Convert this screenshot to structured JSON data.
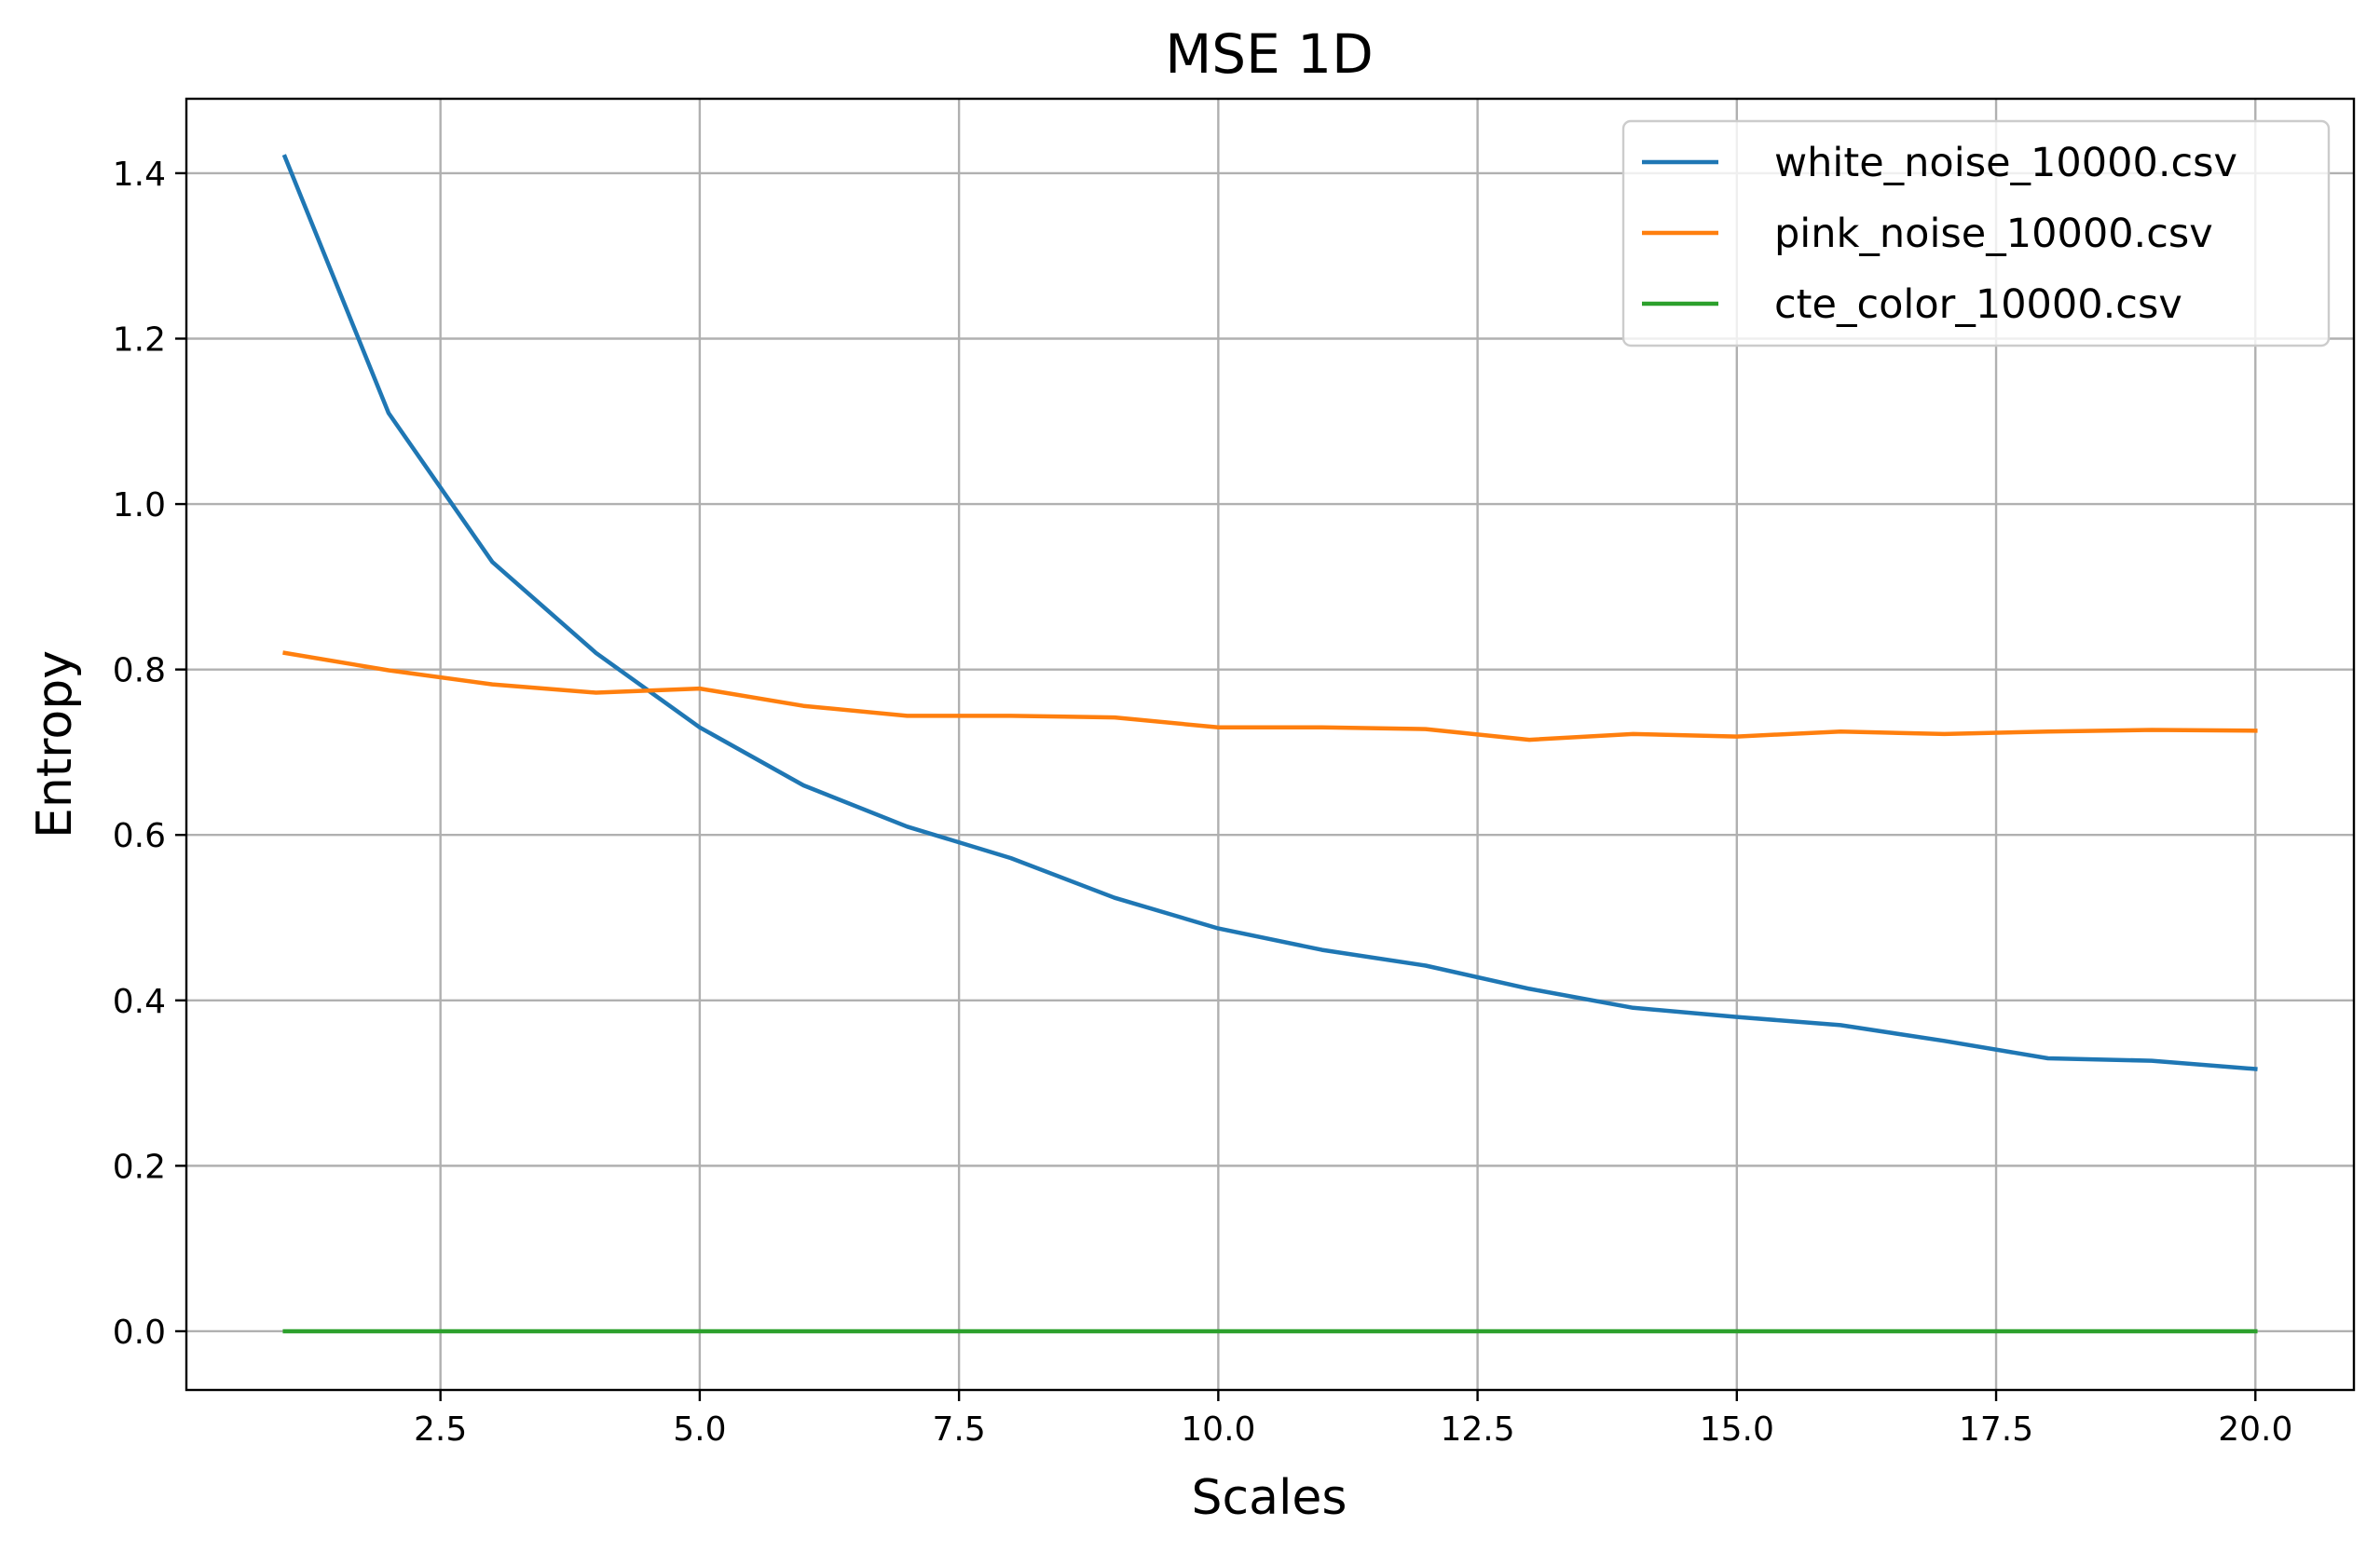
{
  "chart_data": {
    "type": "line",
    "title": "MSE 1D",
    "xlabel": "Scales",
    "ylabel": "Entropy",
    "xlim": [
      0.05,
      20.95
    ],
    "ylim": [
      -0.071,
      1.49
    ],
    "xticks": [
      2.5,
      5.0,
      7.5,
      10.0,
      12.5,
      15.0,
      17.5,
      20.0
    ],
    "xtick_labels": [
      "2.5",
      "5.0",
      "7.5",
      "10.0",
      "12.5",
      "15.0",
      "17.5",
      "20.0"
    ],
    "yticks": [
      0.0,
      0.2,
      0.4,
      0.6,
      0.8,
      1.0,
      1.2,
      1.4
    ],
    "ytick_labels": [
      "0.0",
      "0.2",
      "0.4",
      "0.6",
      "0.8",
      "1.0",
      "1.2",
      "1.4"
    ],
    "grid": true,
    "legend_position": "top-right",
    "x": [
      1,
      2,
      3,
      4,
      5,
      6,
      7,
      8,
      9,
      10,
      11,
      12,
      13,
      14,
      15,
      16,
      17,
      18,
      19,
      20
    ],
    "series": [
      {
        "name": "white_noise_10000.csv",
        "color": "#1f77b4",
        "values": [
          1.42,
          1.11,
          0.93,
          0.82,
          0.73,
          0.66,
          0.61,
          0.572,
          0.524,
          0.487,
          0.461,
          0.442,
          0.414,
          0.391,
          0.38,
          0.37,
          0.351,
          0.33,
          0.327,
          0.317
        ]
      },
      {
        "name": "pink_noise_10000.csv",
        "color": "#ff7f0e",
        "values": [
          0.82,
          0.799,
          0.782,
          0.772,
          0.777,
          0.756,
          0.744,
          0.744,
          0.742,
          0.73,
          0.73,
          0.728,
          0.715,
          0.722,
          0.719,
          0.725,
          0.722,
          0.725,
          0.727,
          0.726
        ]
      },
      {
        "name": "cte_color_10000.csv",
        "color": "#2ca02c",
        "values": [
          0,
          0,
          0,
          0,
          0,
          0,
          0,
          0,
          0,
          0,
          0,
          0,
          0,
          0,
          0,
          0,
          0,
          0,
          0,
          0
        ]
      }
    ]
  }
}
